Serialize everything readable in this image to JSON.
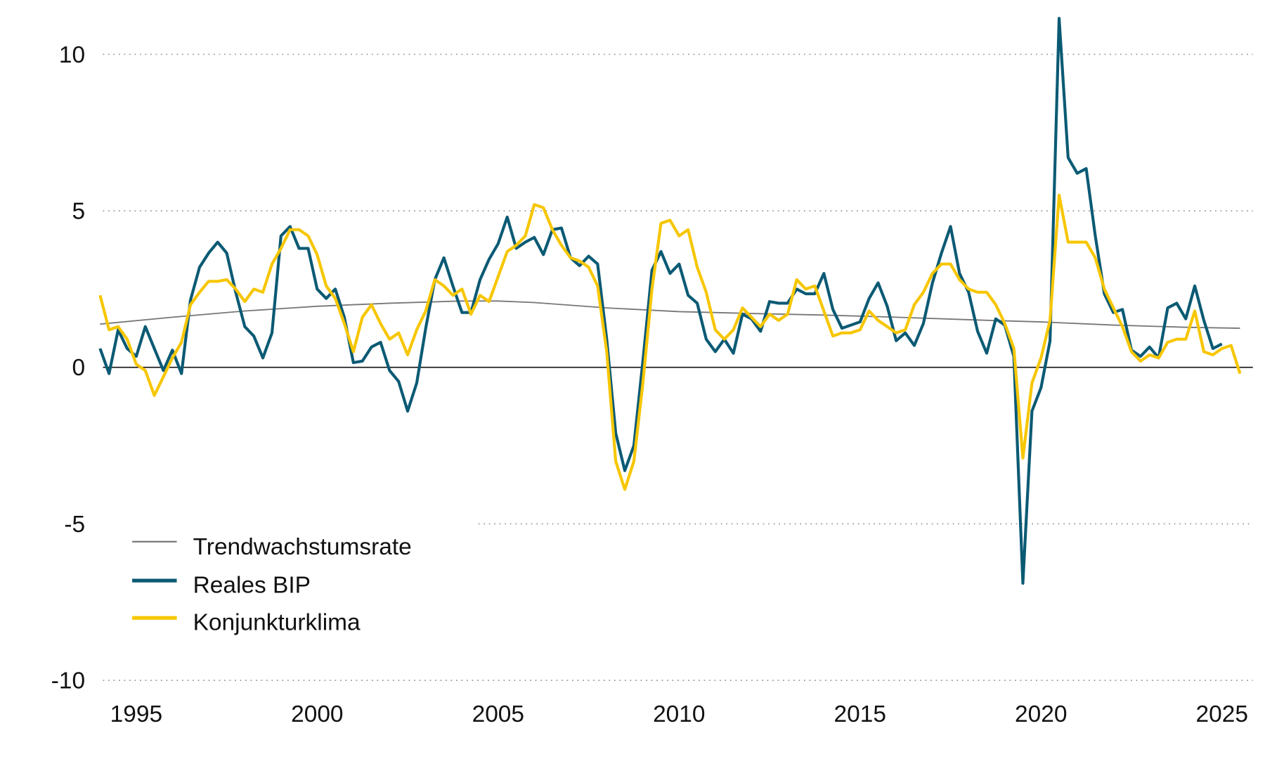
{
  "chart_data": {
    "type": "line",
    "title": "",
    "xlabel": "",
    "ylabel": "",
    "xlim": [
      1994.0,
      2025.8
    ],
    "ylim": [
      -10,
      11.5
    ],
    "x_ticks": [
      "1995",
      "2000",
      "2005",
      "2010",
      "2015",
      "2020",
      "2025"
    ],
    "x_tick_values": [
      1995,
      2000,
      2005,
      2010,
      2015,
      2020,
      2025
    ],
    "y_ticks": [
      "10",
      "5",
      "0",
      "-5",
      "-10"
    ],
    "y_tick_values": [
      10,
      5,
      0,
      -5,
      -10
    ],
    "grid": "horizontal dotted",
    "legend_placement": "bottom-left",
    "series": [
      {
        "name": "Trendwachstumsrate",
        "color": "#777777",
        "x": [
          1994.0,
          1996,
          1998,
          2000,
          2002,
          2004,
          2005,
          2006,
          2008,
          2010,
          2012,
          2014,
          2016,
          2018,
          2020,
          2022,
          2024,
          2025.5
        ],
        "values": [
          1.38,
          1.6,
          1.8,
          1.95,
          2.05,
          2.12,
          2.12,
          2.07,
          1.9,
          1.78,
          1.72,
          1.67,
          1.6,
          1.52,
          1.45,
          1.35,
          1.28,
          1.25
        ]
      },
      {
        "name": "Reales BIP",
        "color": "#0b5a74",
        "x_start": 1994.0,
        "x_step": 0.25,
        "values": [
          0.6,
          -0.2,
          1.2,
          0.6,
          0.35,
          1.3,
          0.6,
          -0.1,
          0.55,
          -0.2,
          2.15,
          3.2,
          3.65,
          4.0,
          3.65,
          2.4,
          1.3,
          1.0,
          0.3,
          1.1,
          4.2,
          4.5,
          3.8,
          3.8,
          2.5,
          2.2,
          2.5,
          1.6,
          0.15,
          0.2,
          0.65,
          0.8,
          -0.1,
          -0.45,
          -1.4,
          -0.5,
          1.25,
          2.8,
          3.5,
          2.6,
          1.75,
          1.75,
          2.8,
          3.45,
          3.95,
          4.8,
          3.8,
          4.0,
          4.15,
          3.6,
          4.4,
          4.45,
          3.5,
          3.25,
          3.55,
          3.3,
          0.9,
          -2.1,
          -3.3,
          -2.5,
          0.2,
          3.1,
          3.7,
          3.0,
          3.3,
          2.3,
          2.05,
          0.9,
          0.5,
          0.9,
          0.45,
          1.7,
          1.55,
          1.15,
          2.1,
          2.05,
          2.05,
          2.5,
          2.35,
          2.35,
          3.0,
          1.85,
          1.25,
          1.35,
          1.45,
          2.2,
          2.7,
          1.95,
          0.85,
          1.1,
          0.7,
          1.4,
          2.7,
          3.65,
          4.5,
          3.0,
          2.4,
          1.15,
          0.45,
          1.55,
          1.35,
          0.35,
          -6.9,
          -1.4,
          -0.65,
          0.85,
          11.15,
          6.7,
          6.2,
          6.35,
          4.2,
          2.35,
          1.75,
          1.85,
          0.55,
          0.35,
          0.65,
          0.3,
          1.9,
          2.05,
          1.55,
          2.6,
          1.5,
          0.6,
          0.75
        ]
      },
      {
        "name": "Konjunkturklima",
        "color": "#f7c600",
        "x_start": 1994.0,
        "x_step": 0.25,
        "values": [
          2.3,
          1.2,
          1.3,
          0.9,
          0.1,
          -0.1,
          -0.9,
          -0.3,
          0.3,
          0.8,
          2.0,
          2.4,
          2.75,
          2.75,
          2.8,
          2.5,
          2.1,
          2.5,
          2.4,
          3.3,
          3.8,
          4.4,
          4.4,
          4.2,
          3.6,
          2.6,
          2.2,
          1.4,
          0.5,
          1.6,
          2.0,
          1.4,
          0.9,
          1.1,
          0.4,
          1.2,
          1.8,
          2.8,
          2.6,
          2.3,
          2.5,
          1.7,
          2.3,
          2.1,
          2.9,
          3.7,
          3.9,
          4.2,
          5.2,
          5.1,
          4.4,
          3.9,
          3.5,
          3.4,
          3.2,
          2.6,
          0.5,
          -3.0,
          -3.9,
          -3.0,
          -0.5,
          2.5,
          4.6,
          4.7,
          4.2,
          4.4,
          3.2,
          2.4,
          1.2,
          0.9,
          1.2,
          1.9,
          1.6,
          1.3,
          1.7,
          1.5,
          1.7,
          2.8,
          2.5,
          2.6,
          1.8,
          1.0,
          1.1,
          1.1,
          1.2,
          1.8,
          1.5,
          1.3,
          1.1,
          1.2,
          2.0,
          2.4,
          3.0,
          3.3,
          3.3,
          2.8,
          2.5,
          2.4,
          2.4,
          2.0,
          1.4,
          0.6,
          -2.9,
          -0.5,
          0.3,
          1.5,
          5.5,
          4.0,
          4.0,
          4.0,
          3.5,
          2.5,
          1.9,
          1.3,
          0.5,
          0.2,
          0.4,
          0.3,
          0.8,
          0.9,
          0.9,
          1.8,
          0.5,
          0.4,
          0.6,
          0.7,
          -0.2
        ]
      }
    ]
  }
}
